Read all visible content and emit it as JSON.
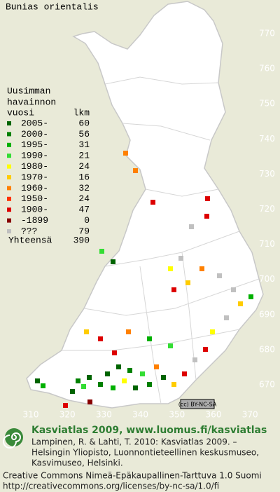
{
  "title": "Bunias orientalis",
  "map": {
    "north_labels": [
      770,
      760,
      750,
      740,
      730,
      720,
      710,
      700,
      690,
      680,
      670
    ],
    "east_labels": [
      310,
      320,
      330,
      340,
      350,
      360,
      370
    ],
    "badge": "(cc) BY-NC-SA"
  },
  "legend": {
    "header": [
      "Uusimman",
      "havainnon",
      "vuosi"
    ],
    "count_header": "lkm",
    "rows": [
      {
        "label": "2005-",
        "count": 60,
        "color": "#006400"
      },
      {
        "label": "2000-",
        "count": 56,
        "color": "#008000"
      },
      {
        "label": "1995-",
        "count": 31,
        "color": "#00b000"
      },
      {
        "label": "1990-",
        "count": 21,
        "color": "#33dd33"
      },
      {
        "label": "1980-",
        "count": 24,
        "color": "#ffff00"
      },
      {
        "label": "1970-",
        "count": 16,
        "color": "#ffcc00"
      },
      {
        "label": "1960-",
        "count": 32,
        "color": "#ff8000"
      },
      {
        "label": "1950-",
        "count": 24,
        "color": "#ff3300"
      },
      {
        "label": "1900-",
        "count": 47,
        "color": "#dd0000"
      },
      {
        "label": "-1899",
        "count": 0,
        "color": "#880000"
      },
      {
        "label": "???",
        "count": 79,
        "color": "#c0c0c0"
      }
    ],
    "total": {
      "label": "Yhteensä",
      "count": 390
    }
  },
  "footer": {
    "heading": "Kasviatlas 2009, www.luomus.fi/kasviatlas",
    "citation": [
      "Lampinen, R. & Lahti, T. 2010: Kasviatlas 2009. –",
      "Helsingin Yliopisto, Luonnontieteellinen keskusmuseo,",
      "Kasvimuseo, Helsinki."
    ],
    "license": [
      "Creative Commons Nimeä-Epäkaupallinen-Tarttuva 1.0 Suomi",
      "http://creativecommons.org/licenses/by-nc-sa/1.0/fi"
    ]
  }
}
